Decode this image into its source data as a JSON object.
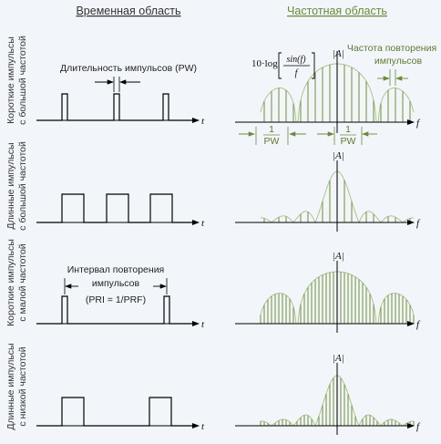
{
  "headers": {
    "time_domain": "Временная область",
    "freq_domain": "Частотная область"
  },
  "rows": [
    {
      "line1": "Короткие импульсы",
      "line2": "с большой частотой",
      "pulse_width": "short",
      "prf": "high"
    },
    {
      "line1": "Длинные импульсы",
      "line2": "с большой частотой",
      "pulse_width": "long",
      "prf": "high"
    },
    {
      "line1": "Короткие импульсы",
      "line2": "с малой частотой",
      "pulse_width": "short",
      "prf": "low"
    },
    {
      "line1": "Длинные импульсы",
      "line2": "с низкой частотой",
      "pulse_width": "long",
      "prf": "low"
    }
  ],
  "annotations": {
    "pw_label": "Длительность импульсов (PW)",
    "prf_label_1": "Частота повторения",
    "prf_label_2": "импульсов",
    "pri_label_1": "Интервал повторения",
    "pri_label_2": "импульсов",
    "pri_label_3": "(PRI = 1/PRF)",
    "inv_pw_num": "1",
    "inv_pw_den": "PW",
    "formula_prefix": "10·log",
    "formula_num": "sin(f)",
    "formula_den": "f",
    "axis_amp": "|A|",
    "axis_time": "t",
    "axis_freq": "f"
  },
  "colors": {
    "header_time": "#333333",
    "header_freq": "#6b8a3a",
    "spectral_line": "#7a9a46",
    "envelope": "#a8bf84",
    "axis": "#000000"
  }
}
